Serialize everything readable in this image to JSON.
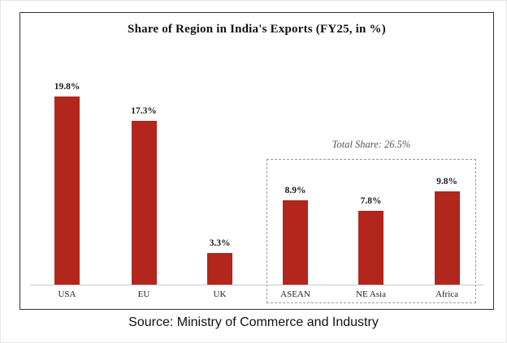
{
  "chart_data": {
    "type": "bar",
    "title": "Share of Region in India's Exports (FY25, in %)",
    "categories": [
      "USA",
      "EU",
      "UK",
      "ASEAN",
      "NE Asia",
      "Africa"
    ],
    "values": [
      19.8,
      17.3,
      3.3,
      8.9,
      7.8,
      9.8
    ],
    "value_labels": [
      "19.8%",
      "17.3%",
      "3.3%",
      "8.9%",
      "7.8%",
      "9.8%"
    ],
    "xlabel": "",
    "ylabel": "",
    "ylim": [
      0,
      22
    ],
    "grid": false,
    "legend": "none",
    "bar_color": "#b2261c",
    "annotation": {
      "label": "Total Share: 26.5%",
      "applies_to": [
        "ASEAN",
        "NE Asia",
        "Africa"
      ],
      "style": "dashed-box"
    }
  },
  "footer": {
    "source": "Source: Ministry of Commerce and Industry"
  }
}
